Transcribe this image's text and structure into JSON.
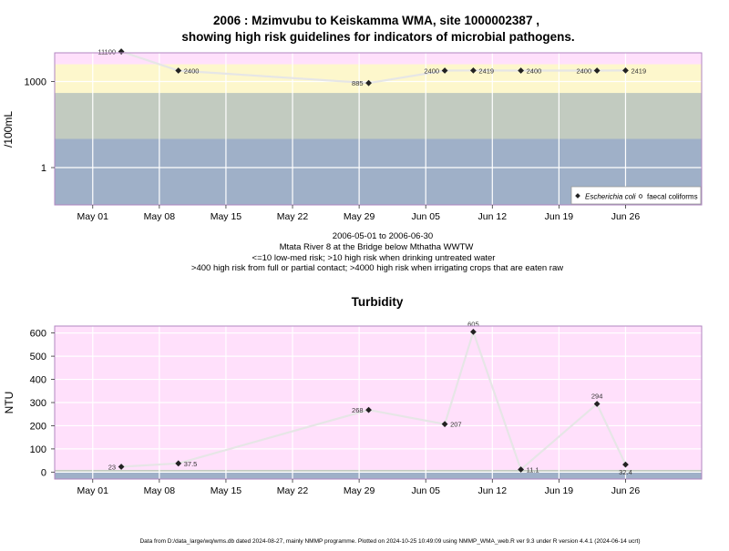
{
  "chart_data": [
    {
      "type": "scatter",
      "title_line1": "2006 : Mzimvubu to Keiskamma WMA, site 1000002387 ,",
      "title_line2": "showing high risk guidelines for indicators of microbial pathogens.",
      "ylabel": "/100mL",
      "yscale": "log10",
      "ylim": [
        0.05,
        10000
      ],
      "yticks": [
        {
          "v": 1,
          "label": "1"
        },
        {
          "v": 1000,
          "label": "1000"
        }
      ],
      "xlim": [
        "2006-04-27",
        "2006-07-04"
      ],
      "xticks": [
        {
          "date": "2006-05-01",
          "label": "May 01"
        },
        {
          "date": "2006-05-08",
          "label": "May 08"
        },
        {
          "date": "2006-05-15",
          "label": "May 15"
        },
        {
          "date": "2006-05-22",
          "label": "May 22"
        },
        {
          "date": "2006-05-29",
          "label": "May 29"
        },
        {
          "date": "2006-06-05",
          "label": "Jun 05"
        },
        {
          "date": "2006-06-12",
          "label": "Jun 12"
        },
        {
          "date": "2006-06-19",
          "label": "Jun 19"
        },
        {
          "date": "2006-06-26",
          "label": "Jun 26"
        }
      ],
      "bands": [
        {
          "from": 0.05,
          "to": 10,
          "color": "#9fb0c8"
        },
        {
          "from": 10,
          "to": 400,
          "color": "#c2cbc0"
        },
        {
          "from": 400,
          "to": 4000,
          "color": "#fdf7cc"
        },
        {
          "from": 4000,
          "to": 10000,
          "color": "#ffe0fb"
        }
      ],
      "series": [
        {
          "name": "Escherichia coli",
          "color": "#222222",
          "points": [
            {
              "date": "2006-05-04",
              "y": 11100,
              "label": "11100",
              "pos": "left"
            },
            {
              "date": "2006-05-10",
              "y": 2400,
              "label": "2400",
              "pos": "right"
            },
            {
              "date": "2006-05-30",
              "y": 885,
              "label": "885",
              "pos": "left"
            },
            {
              "date": "2006-06-07",
              "y": 2400,
              "label": "2400",
              "pos": "left"
            },
            {
              "date": "2006-06-10",
              "y": 2419,
              "label": "2419",
              "pos": "right"
            },
            {
              "date": "2006-06-15",
              "y": 2400,
              "label": "2400",
              "pos": "right"
            },
            {
              "date": "2006-06-23",
              "y": 2400,
              "label": "2400",
              "pos": "left"
            },
            {
              "date": "2006-06-26",
              "y": 2419,
              "label": "2419",
              "pos": "right"
            }
          ]
        }
      ],
      "legend": {
        "position": "bottom-right",
        "entries": [
          {
            "label": "Escherichia coli",
            "italic": true,
            "marker": "filled"
          },
          {
            "label": "faecal coliforms",
            "italic": false,
            "marker": "open"
          }
        ]
      },
      "notes": [
        "2006-05-01 to 2006-06-30",
        "Mtata River 8 at the Bridge below Mthatha WWTW",
        "<=10 low-med risk; >10 high risk when drinking untreated water",
        ">400 high risk from full or partial contact; >4000 high risk when irrigating crops that are eaten raw"
      ]
    },
    {
      "type": "line",
      "title": "Turbidity",
      "ylabel": "NTU",
      "ylim": [
        -30,
        630
      ],
      "yticks": [
        0,
        100,
        200,
        300,
        400,
        500,
        600
      ],
      "xlim": [
        "2006-04-27",
        "2006-07-04"
      ],
      "xticks": [
        {
          "date": "2006-05-01",
          "label": "May 01"
        },
        {
          "date": "2006-05-08",
          "label": "May 08"
        },
        {
          "date": "2006-05-15",
          "label": "May 15"
        },
        {
          "date": "2006-05-22",
          "label": "May 22"
        },
        {
          "date": "2006-05-29",
          "label": "May 29"
        },
        {
          "date": "2006-06-05",
          "label": "Jun 05"
        },
        {
          "date": "2006-06-12",
          "label": "Jun 12"
        },
        {
          "date": "2006-06-19",
          "label": "Jun 19"
        },
        {
          "date": "2006-06-26",
          "label": "Jun 26"
        }
      ],
      "bands": [
        {
          "from": -30,
          "to": 1,
          "color": "#9fb0c8"
        },
        {
          "from": 1,
          "to": 10,
          "color": "#c2cbc0"
        },
        {
          "from": 10,
          "to": 630,
          "color": "#ffe0fb"
        }
      ],
      "series": [
        {
          "name": "",
          "color": "#222222",
          "points": [
            {
              "date": "2006-05-04",
              "y": 23,
              "label": "23",
              "pos": "left"
            },
            {
              "date": "2006-05-10",
              "y": 37.5,
              "label": "37.5",
              "pos": "right"
            },
            {
              "date": "2006-05-30",
              "y": 268,
              "label": "268",
              "pos": "left"
            },
            {
              "date": "2006-06-07",
              "y": 207,
              "label": "207",
              "pos": "right"
            },
            {
              "date": "2006-06-10",
              "y": 605,
              "label": "605",
              "pos": "above"
            },
            {
              "date": "2006-06-15",
              "y": 11.1,
              "label": "11.1",
              "pos": "right"
            },
            {
              "date": "2006-06-23",
              "y": 294,
              "label": "294",
              "pos": "above"
            },
            {
              "date": "2006-06-26",
              "y": 32.4,
              "label": "32.4",
              "pos": "below"
            }
          ]
        }
      ]
    }
  ],
  "footer": "Data from D:/data_large/wq/wms.db dated 2024-08-27, mainly NMMP programme. Plotted on 2024-10-25 10:49:09 using NMMP_WMA_web.R ver 9.3 under R version 4.4.1 (2024-06-14 ucrt)"
}
